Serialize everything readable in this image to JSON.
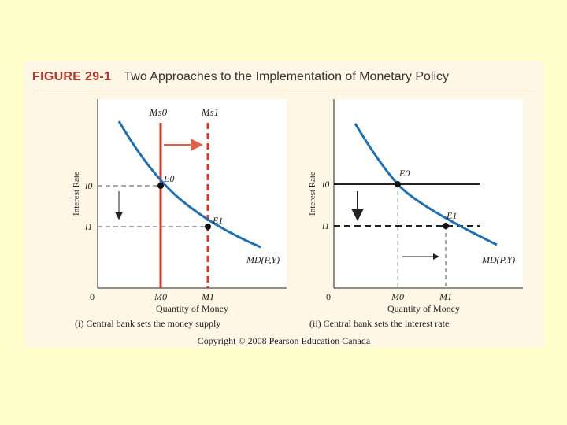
{
  "figure": {
    "label": "FIGURE 29-1",
    "title": "Two Approaches to the Implementation of Monetary Policy",
    "copyright": "Copyright © 2008 Pearson Education Canada"
  },
  "colors": {
    "background": "#ffffcc",
    "panel": "#ffffff",
    "demand_curve": "#1f6fb5",
    "supply_lines": "#d9342b",
    "arrow": "#e06050",
    "rate_lines": "#222222"
  },
  "panels": [
    {
      "caption": "(i) Central bank sets the money supply",
      "ylabel": "Interest Rate",
      "xlabel": "Quantity of Money",
      "origin": "0",
      "rates": [
        "i0",
        "i1"
      ],
      "quantities": [
        "M0",
        "M1"
      ],
      "points": [
        "E0",
        "E1"
      ],
      "supply_labels": [
        "Ms0",
        "Ms1"
      ],
      "demand_label": "MD(P,Y)"
    },
    {
      "caption": "(ii) Central bank sets the interest rate",
      "ylabel": "Interest Rate",
      "xlabel": "Quantity of Money",
      "origin": "0",
      "rates": [
        "i0",
        "i1"
      ],
      "quantities": [
        "M0",
        "M1"
      ],
      "points": [
        "E0",
        "E1"
      ],
      "demand_label": "MD(P,Y)"
    }
  ]
}
